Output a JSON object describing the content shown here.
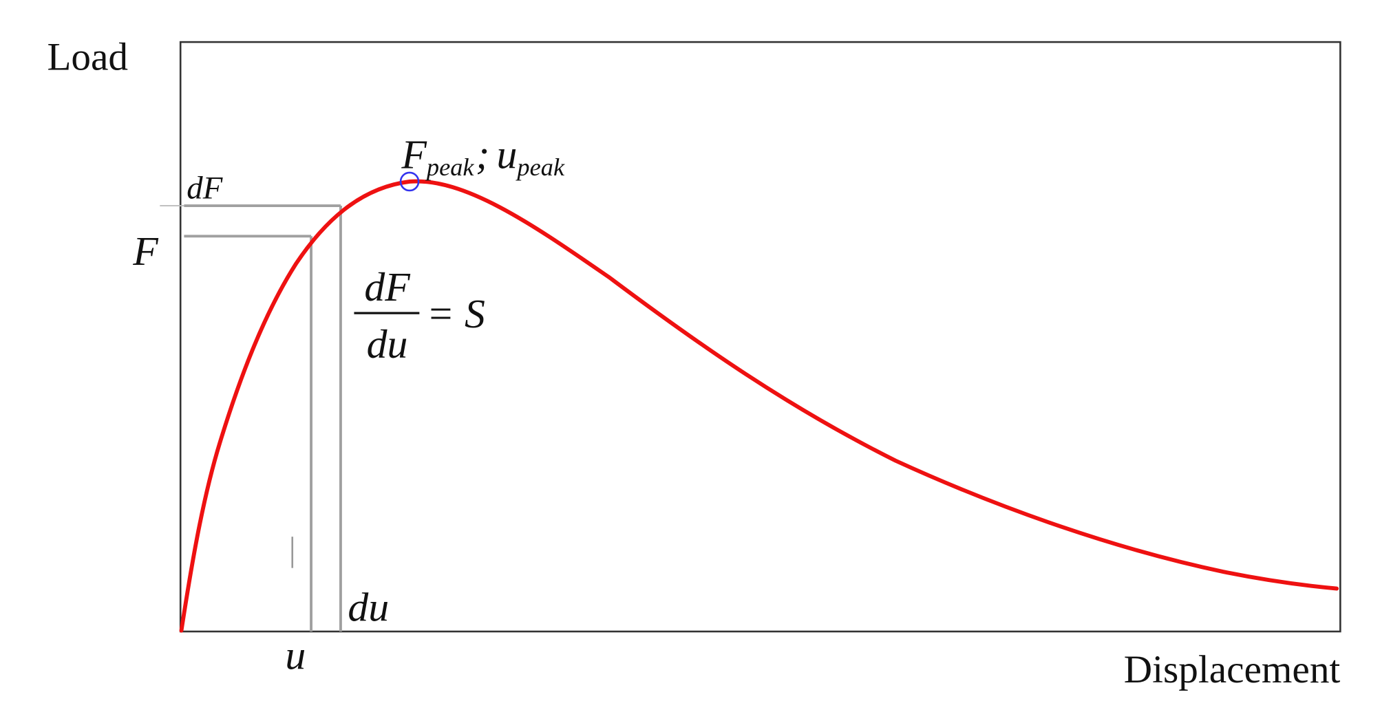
{
  "axes": {
    "y_label": "Load",
    "x_label": "Displacement"
  },
  "annotations": {
    "peak": {
      "force": "F",
      "force_sub": "peak",
      "separator": ";",
      "disp": "u",
      "disp_sub": "peak"
    },
    "dF_top": "dF",
    "F_left": "F",
    "slope": {
      "numerator": "dF",
      "denominator": "du",
      "rhs": "= S"
    },
    "du_bottom": "du",
    "u_bottom": "u"
  }
}
